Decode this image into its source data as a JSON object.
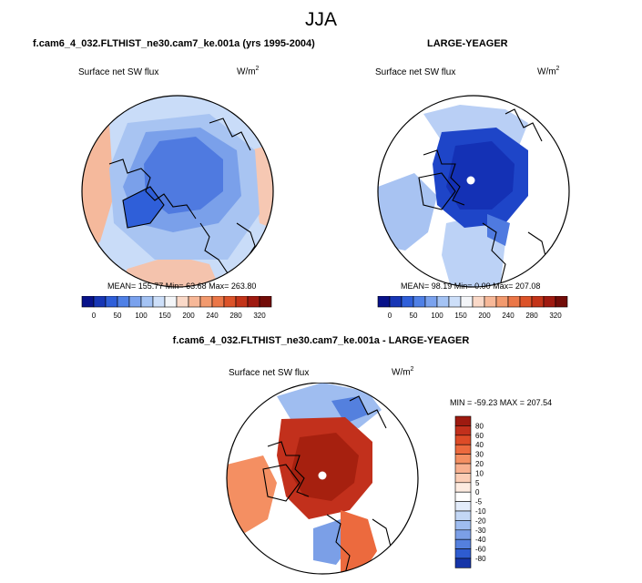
{
  "figure": {
    "season": "JJA",
    "panel_left": {
      "title": "f.cam6_4_032.FLTHIST_ne30.cam7_ke.001a (yrs 1995-2004)",
      "label": "Surface net SW flux",
      "units": "W/m",
      "units_exp": "2",
      "mean": "155.77",
      "min": "63.68",
      "max": "263.80"
    },
    "panel_right": {
      "title": "LARGE-YEAGER",
      "label": "Surface net SW flux",
      "units": "W/m",
      "units_exp": "2",
      "mean": "98.19",
      "min": "0.00",
      "max": "207.08"
    },
    "panel_diff": {
      "title": "f.cam6_4_032.FLTHIST_ne30.cam7_ke.001a - LARGE-YEAGER",
      "label": "Surface net SW flux",
      "units": "W/m",
      "units_exp": "2",
      "min": "-59.23",
      "max": "207.54"
    }
  },
  "chart_data": [
    {
      "type": "heatmap",
      "projection": "north-polar-stereographic",
      "title": "f.cam6_4_032.FLTHIST_ne30.cam7_ke.001a (yrs 1995-2004)",
      "variable": "Surface net SW flux",
      "units": "W/m2",
      "stats": {
        "mean": 155.77,
        "min": 63.68,
        "max": 263.8
      },
      "colorbar": {
        "orientation": "horizontal",
        "ticks": [
          0,
          50,
          100,
          150,
          200,
          240,
          280,
          320
        ],
        "colors": [
          "#08128a",
          "#1736b5",
          "#2f5fd9",
          "#4f80e6",
          "#7aa2ee",
          "#a4c3f4",
          "#cddff9",
          "#f3f5f8",
          "#fad9c8",
          "#f7b898",
          "#f29a6e",
          "#eb7748",
          "#dc5329",
          "#c33419",
          "#9f1a10",
          "#720c08"
        ]
      }
    },
    {
      "type": "heatmap",
      "projection": "north-polar-stereographic",
      "title": "LARGE-YEAGER",
      "variable": "Surface net SW flux",
      "units": "W/m2",
      "stats": {
        "mean": 98.19,
        "min": 0.0,
        "max": 207.08
      },
      "colorbar": {
        "orientation": "horizontal",
        "ticks": [
          0,
          50,
          100,
          150,
          200,
          240,
          280,
          320
        ],
        "colors": [
          "#08128a",
          "#1736b5",
          "#2f5fd9",
          "#4f80e6",
          "#7aa2ee",
          "#a4c3f4",
          "#cddff9",
          "#f3f5f8",
          "#fad9c8",
          "#f7b898",
          "#f29a6e",
          "#eb7748",
          "#dc5329",
          "#c33419",
          "#9f1a10",
          "#720c08"
        ]
      }
    },
    {
      "type": "heatmap",
      "projection": "north-polar-stereographic",
      "title": "f.cam6_4_032.FLTHIST_ne30.cam7_ke.001a - LARGE-YEAGER",
      "variable": "Surface net SW flux",
      "units": "W/m2",
      "stats": {
        "min": -59.23,
        "max": 207.54
      },
      "colorbar": {
        "orientation": "vertical",
        "ticks": [
          80,
          60,
          40,
          30,
          20,
          10,
          5,
          0,
          -5,
          -10,
          -20,
          -30,
          -40,
          -60,
          -80
        ],
        "colors": [
          "#9e1a10",
          "#c2301c",
          "#dd4b27",
          "#ec6a3e",
          "#f48f62",
          "#f8b08f",
          "#fbcdb5",
          "#fdebe0",
          "#ffffff",
          "#e3ecfa",
          "#c3d7f5",
          "#9fbdf0",
          "#7b9fe7",
          "#5480de",
          "#2e5cd0",
          "#1635a8"
        ]
      }
    }
  ]
}
